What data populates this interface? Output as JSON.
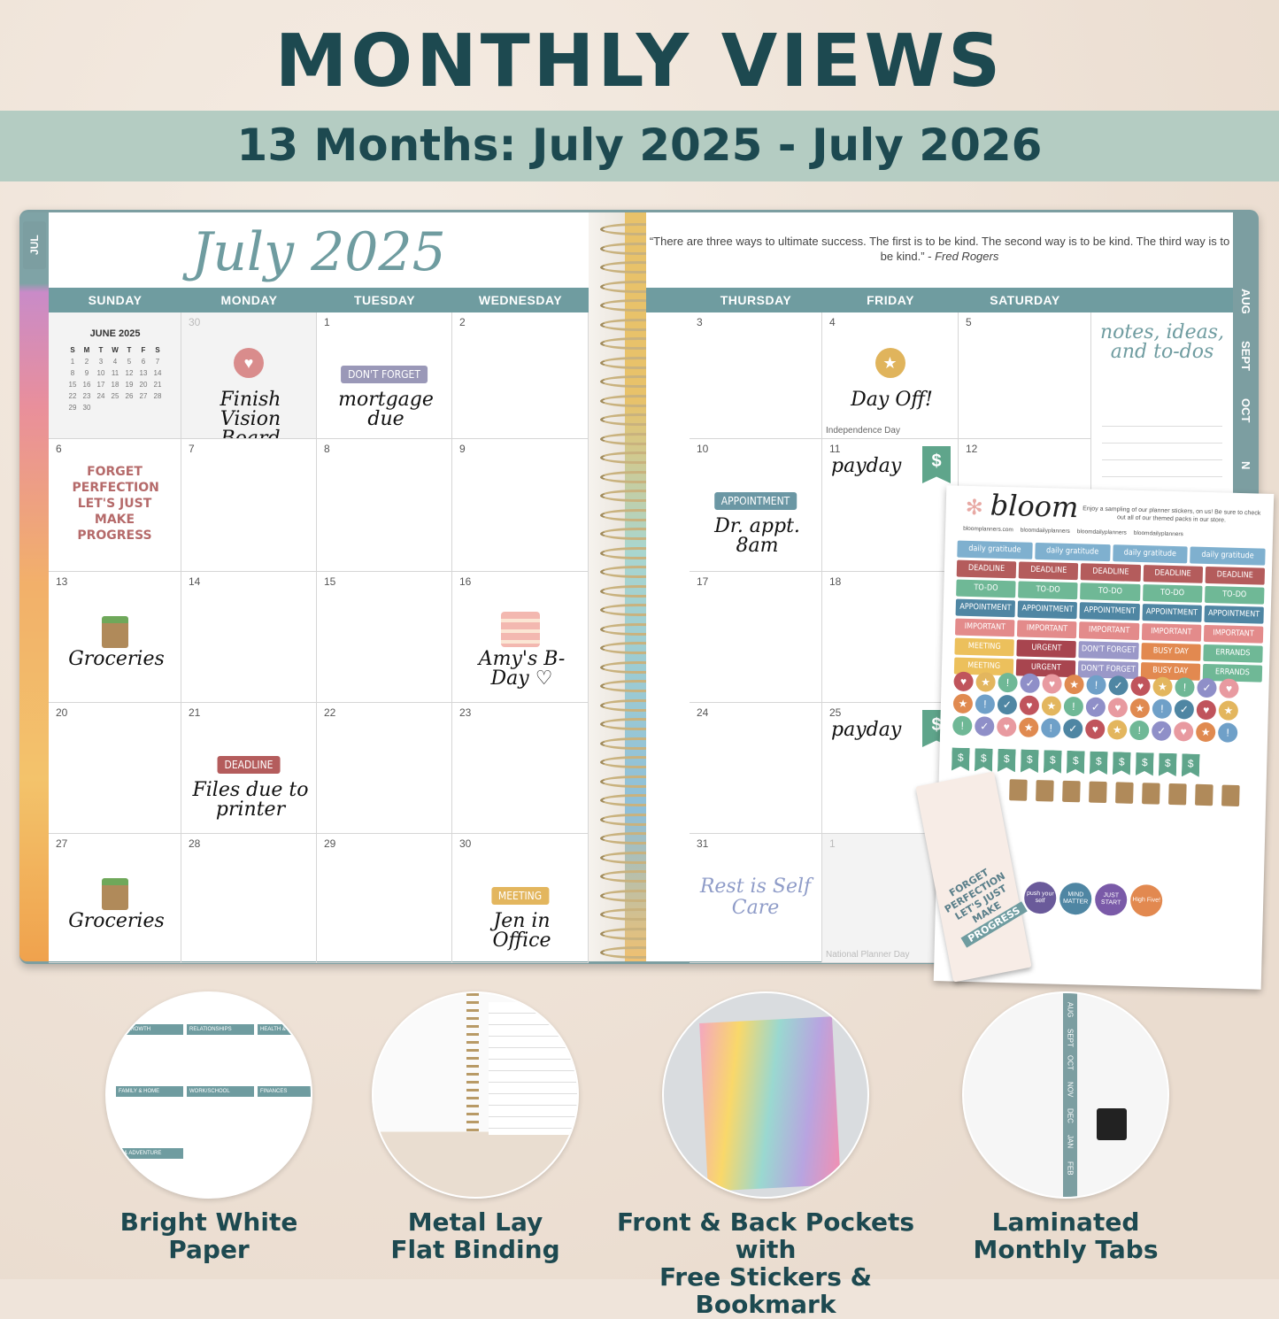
{
  "headline": "MONTHLY VIEWS",
  "subheadline": "13 Months: July 2025 - July 2026",
  "planner": {
    "left_tab": "JUL",
    "month_title": "July 2025",
    "quote_text": "“There are three ways to ultimate success. The first is to be kind. The second way is to be kind. The third way is to be kind.” -",
    "quote_author": "Fred Rogers",
    "left_days": [
      "SUNDAY",
      "MONDAY",
      "TUESDAY",
      "WEDNESDAY"
    ],
    "right_days": [
      "THURSDAY",
      "FRIDAY",
      "SATURDAY"
    ],
    "mini_calendar": {
      "title": "JUNE 2025",
      "weekdays": [
        "S",
        "M",
        "T",
        "W",
        "T",
        "F",
        "S"
      ],
      "weeks": [
        [
          "1",
          "2",
          "3",
          "4",
          "5",
          "6",
          "7"
        ],
        [
          "8",
          "9",
          "10",
          "11",
          "12",
          "13",
          "14"
        ],
        [
          "15",
          "16",
          "17",
          "18",
          "19",
          "20",
          "21"
        ],
        [
          "22",
          "23",
          "24",
          "25",
          "26",
          "27",
          "28"
        ],
        [
          "29",
          "30",
          "",
          "",
          "",
          "",
          ""
        ]
      ]
    },
    "left_cells": [
      {
        "day": "",
        "mini": true
      },
      {
        "day": "30",
        "dim": true,
        "icon": "heart-icon",
        "icon_color": "#d98c8c",
        "hand": "Finish Vision Board"
      },
      {
        "day": "1",
        "sticker": "DON'T FORGET",
        "sticker_color": "#9a98b8",
        "hand": "mortgage due"
      },
      {
        "day": "2"
      },
      {
        "day": "6",
        "badge": "FORGET PERFECTION LET'S JUST MAKE PROGRESS"
      },
      {
        "day": "7"
      },
      {
        "day": "8"
      },
      {
        "day": "9"
      },
      {
        "day": "13",
        "icon": "grocery-bag-icon",
        "hand": "Groceries"
      },
      {
        "day": "14"
      },
      {
        "day": "15"
      },
      {
        "day": "16",
        "icon": "cake-icon",
        "hand": "Amy's B-Day ♡"
      },
      {
        "day": "20"
      },
      {
        "day": "21",
        "sticker": "DEADLINE",
        "sticker_color": "#b45c5c",
        "hand": "Files due to printer"
      },
      {
        "day": "22"
      },
      {
        "day": "23"
      },
      {
        "day": "27",
        "icon": "grocery-bag-icon",
        "hand": "Groceries"
      },
      {
        "day": "28"
      },
      {
        "day": "29"
      },
      {
        "day": "30",
        "sticker": "MEETING",
        "sticker_color": "#e3b65e",
        "hand": "Jen in Office"
      }
    ],
    "right_cells": [
      {
        "day": "3"
      },
      {
        "day": "4",
        "icon": "star-icon",
        "icon_color": "#e0b45c",
        "hand": "Day Off!",
        "note": "Independence Day"
      },
      {
        "day": "5"
      },
      {
        "day": "10",
        "sticker": "APPOINTMENT",
        "sticker_color": "#6b97a4",
        "hand": "Dr. appt. 8am"
      },
      {
        "day": "11",
        "hand": "payday",
        "dollar": "$"
      },
      {
        "day": "12"
      },
      {
        "day": "17"
      },
      {
        "day": "18"
      },
      {
        "day": ""
      },
      {
        "day": "24"
      },
      {
        "day": "25",
        "hand": "payday",
        "dollar": "$"
      },
      {
        "day": ""
      },
      {
        "day": "31",
        "badge": "Rest is Self Care"
      },
      {
        "day": "1",
        "dim": true,
        "note": "National Planner Day"
      },
      {
        "day": ""
      }
    ],
    "notes_title": "notes, ideas, and to-dos",
    "right_tabs": [
      "AUG",
      "SEPT",
      "OCT",
      "N"
    ]
  },
  "sticker_sheet": {
    "brand": "bloom",
    "message": "Enjoy a sampling of our planner stickers, on us! Be sure to check out all of our themed packs in our store.",
    "socials": [
      "bloomplanners.com",
      "bloomdailyplanners",
      "bloomdailyplanners",
      "bloomdailyplanners"
    ],
    "rows": [
      {
        "labels": [
          "daily gratitude",
          "daily gratitude",
          "daily gratitude",
          "daily gratitude"
        ],
        "colors": [
          "#7fb0cf",
          "#7fb0cf",
          "#7fb0cf",
          "#7fb0cf"
        ]
      },
      {
        "labels": [
          "DEADLINE",
          "DEADLINE",
          "DEADLINE",
          "DEADLINE",
          "DEADLINE"
        ],
        "colors": [
          "#b45c5c",
          "#b45c5c",
          "#b45c5c",
          "#b45c5c",
          "#b45c5c"
        ]
      },
      {
        "labels": [
          "TO-DO",
          "TO-DO",
          "TO-DO",
          "TO-DO",
          "TO-DO"
        ],
        "colors": [
          "#6fb896",
          "#6fb896",
          "#6fb896",
          "#6fb896",
          "#6fb896"
        ]
      },
      {
        "labels": [
          "APPOINTMENT",
          "APPOINTMENT",
          "APPOINTMENT",
          "APPOINTMENT",
          "APPOINTMENT"
        ],
        "colors": [
          "#4f86a3",
          "#4f86a3",
          "#4f86a3",
          "#4f86a3",
          "#4f86a3"
        ]
      },
      {
        "labels": [
          "IMPORTANT",
          "IMPORTANT",
          "IMPORTANT",
          "IMPORTANT",
          "IMPORTANT"
        ],
        "colors": [
          "#e38b8b",
          "#e38b8b",
          "#e38b8b",
          "#e38b8b",
          "#e38b8b"
        ]
      },
      {
        "labels": [
          "MEETING",
          "URGENT",
          "DON'T FORGET",
          "BUSY DAY",
          "ERRANDS"
        ],
        "colors": [
          "#ecc05c",
          "#a8454f",
          "#9a98c8",
          "#e28950",
          "#6fb896"
        ]
      },
      {
        "labels": [
          "MEETING",
          "URGENT",
          "DON'T FORGET",
          "BUSY DAY",
          "ERRANDS"
        ],
        "colors": [
          "#ecc05c",
          "#a8454f",
          "#9a98c8",
          "#e28950",
          "#6fb896"
        ]
      }
    ],
    "dot_symbols": [
      "♥",
      "★",
      "!",
      "✓"
    ],
    "dot_colors": [
      "#c0545c",
      "#e3b65e",
      "#6fb896",
      "#8f8fc8",
      "#e89aa0",
      "#e08a50",
      "#6fa0c8",
      "#4f86a3"
    ],
    "circles": [
      {
        "text": "push your self",
        "color": "#6a5a9a"
      },
      {
        "text": "MIND MATTER",
        "color": "#4f86a3"
      },
      {
        "text": "JUST START",
        "color": "#7a5aa8"
      },
      {
        "text": "High Five!",
        "color": "#e28950"
      }
    ],
    "bookmark_text": "FORGET PERFECTION LET'S JUST MAKE",
    "bookmark_label": "PROGRESS"
  },
  "features": [
    {
      "line1": "Bright White",
      "line2": "Paper"
    },
    {
      "line1": "Metal Lay",
      "line2": "Flat Binding"
    },
    {
      "line1": "Front & Back Pockets with",
      "line2": "Free Stickers & Bookmark"
    },
    {
      "line1": "Laminated",
      "line2": "Monthly Tabs"
    }
  ],
  "feature_tabs": [
    "AUG",
    "SEPT",
    "OCT",
    "NOV",
    "DEC",
    "JAN",
    "FEB"
  ],
  "feature_paper_headings": [
    "AL GROWTH",
    "RELATIONSHIPS",
    "HEALTH & F",
    "FAMILY & HOME",
    "WORK/SCHOOL",
    "FINANCES",
    "N & ADVENTURE"
  ]
}
